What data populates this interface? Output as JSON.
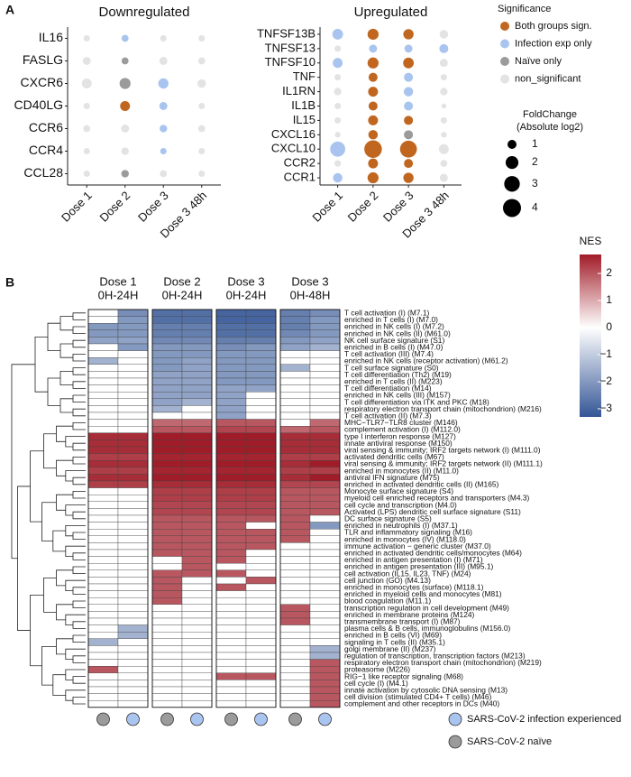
{
  "chart_data": [
    {
      "type": "dot",
      "panel": "A",
      "title": "Downregulated",
      "x": [
        "Dose 1",
        "Dose 2",
        "Dose 3",
        "Dose 3 48h"
      ],
      "genes": [
        "IL16",
        "FASLG",
        "CXCR6",
        "CD40LG",
        "CCR6",
        "CCR4",
        "CCL28"
      ],
      "sizes": [
        [
          0.5,
          0.6,
          0.5,
          0.5
        ],
        [
          0.8,
          0.6,
          0.8,
          0.6
        ],
        [
          1.2,
          1.5,
          1.3,
          0.9
        ],
        [
          0.5,
          1.2,
          0.8,
          0.5
        ],
        [
          0.6,
          0.8,
          0.7,
          0.6
        ],
        [
          0.5,
          0.7,
          0.5,
          0.5
        ],
        [
          0.5,
          0.7,
          0.6,
          0.5
        ]
      ],
      "significance": [
        [
          "non_significant",
          "Infection exp only",
          "non_significant",
          "non_significant"
        ],
        [
          "non_significant",
          "Naïve only",
          "non_significant",
          "non_significant"
        ],
        [
          "non_significant",
          "Naïve only",
          "Infection exp only",
          "non_significant"
        ],
        [
          "non_significant",
          "Both groups sign.",
          "Infection exp only",
          "non_significant"
        ],
        [
          "non_significant",
          "non_significant",
          "Infection exp only",
          "non_significant"
        ],
        [
          "non_significant",
          "non_significant",
          "Infection exp only",
          "non_significant"
        ],
        [
          "non_significant",
          "Naïve only",
          "non_significant",
          "non_significant"
        ]
      ]
    },
    {
      "type": "dot",
      "title": "Upregulated",
      "x": [
        "Dose 1",
        "Dose 2",
        "Dose 3",
        "Dose 3 48h"
      ],
      "genes": [
        "TNFSF13B",
        "TNFSF13",
        "TNFSF10",
        "TNF",
        "IL1RN",
        "IL1B",
        "IL15",
        "CXCL16",
        "CXCL10",
        "CCR2",
        "CCR1"
      ],
      "sizes": [
        [
          1.4,
          1.5,
          1.3,
          0.9
        ],
        [
          0.5,
          0.8,
          0.8,
          1.0
        ],
        [
          1.2,
          1.5,
          1.4,
          0.8
        ],
        [
          0.5,
          1.0,
          1.0,
          0.5
        ],
        [
          0.7,
          1.2,
          1.1,
          0.7
        ],
        [
          0.5,
          1.0,
          1.0,
          0.3
        ],
        [
          0.5,
          1.2,
          1.0,
          0.5
        ],
        [
          0.4,
          1.1,
          1.0,
          0.4
        ],
        [
          2.8,
          3.8,
          3.5,
          1.2
        ],
        [
          0.5,
          1.2,
          1.0,
          0.6
        ],
        [
          1.1,
          1.5,
          1.3,
          0.8
        ]
      ],
      "significance": [
        [
          "Infection exp only",
          "Both groups sign.",
          "Both groups sign.",
          "non_significant"
        ],
        [
          "non_significant",
          "Infection exp only",
          "Infection exp only",
          "Infection exp only"
        ],
        [
          "Infection exp only",
          "Both groups sign.",
          "Both groups sign.",
          "non_significant"
        ],
        [
          "non_significant",
          "Both groups sign.",
          "Infection exp only",
          "non_significant"
        ],
        [
          "non_significant",
          "Both groups sign.",
          "Infection exp only",
          "non_significant"
        ],
        [
          "non_significant",
          "Both groups sign.",
          "Infection exp only",
          "non_significant"
        ],
        [
          "non_significant",
          "Both groups sign.",
          "Both groups sign.",
          "non_significant"
        ],
        [
          "non_significant",
          "Both groups sign.",
          "Naïve only",
          "non_significant"
        ],
        [
          "Infection exp only",
          "Both groups sign.",
          "Both groups sign.",
          "non_significant"
        ],
        [
          "non_significant",
          "Both groups sign.",
          "Both groups sign.",
          "non_significant"
        ],
        [
          "Infection exp only",
          "Both groups sign.",
          "Both groups sign.",
          "non_significant"
        ]
      ],
      "significance_legend": {
        "title": "Significance",
        "entries": [
          {
            "name": "Both groups sign.",
            "color": "#c0661f"
          },
          {
            "name": "Infection exp only",
            "color": "#a9c4ee"
          },
          {
            "name": "Naïve only",
            "color": "#9b9b9b"
          },
          {
            "name": "non_significant",
            "color": "#e3e3e3"
          }
        ]
      },
      "size_legend": {
        "title": [
          "FoldChange",
          "(Absolute log2)"
        ],
        "values": [
          1,
          2,
          3,
          4
        ]
      }
    },
    {
      "type": "heatmap",
      "panel": "B",
      "headers": [
        [
          "Dose 1",
          "0H-24H"
        ],
        [
          "Dose 2",
          "0H-24H"
        ],
        [
          "Dose 3",
          "0H-24H"
        ],
        [
          "Dose 3",
          "0H-48H"
        ]
      ],
      "column_cohorts": [
        "SARS-CoV-2 naïve",
        "SARS-CoV-2 infection experienced",
        "SARS-CoV-2 naïve",
        "SARS-CoV-2 infection experienced",
        "SARS-CoV-2 naïve",
        "SARS-CoV-2 infection experienced",
        "SARS-CoV-2 naïve",
        "SARS-CoV-2 infection experienced"
      ],
      "cohorts": [
        {
          "name": "SARS-CoV-2 infection experienced",
          "color": "#a9c4ee"
        },
        {
          "name": "SARS-CoV-2 naïve",
          "color": "#9b9b9b"
        }
      ],
      "colorbar": {
        "title": "NES",
        "clim": [
          -3.3,
          2.7
        ],
        "ticks": [
          2,
          1,
          0,
          {
            "value": -1,
            "label": "−1"
          },
          {
            "value": -2,
            "label": "−2"
          },
          {
            "value": -3,
            "label": "−3"
          }
        ]
      },
      "rows": [
        "T cell activation (I) (M7.1)",
        "enriched in T cells (I) (M7.0)",
        "enriched in NK cells (I) (M7.2)",
        "enriched in NK cells (II) (M61.0)",
        "NK cell surface signature (S1)",
        "enriched in B cells (I) (M47.0)",
        "T cell activation (III) (M7.4)",
        "enriched in NK cells (receptor activation) (M61.2)",
        "T cell surface signature (S0)",
        "T cell differentiation (Th2) (M19)",
        "enriched in T cells (II) (M223)",
        "T cell differentiation (M14)",
        "enriched in NK cells (III) (M157)",
        "T cell differentiation via ITK and PKC (M18)",
        "respiratory electron transport chain (mitochondrion) (M216)",
        "T cell activation (II) (M7.3)",
        "MHC−TLR7−TLR8 cluster (M146)",
        "complement activation (I) (M112.0)",
        "type I interferon response (M127)",
        "innate antiviral response (M150)",
        "viral sensing & immunity; IRF2 targets network (I) (M111.0)",
        "activated dendritic cells (M67)",
        "viral sensing & immunity; IRF2 targets network (II) (M111.1)",
        "enriched in monocytes (II) (M11.0)",
        "antiviral IFN signature (M75)",
        "enriched in activated dendritic cells (II) (M165)",
        "Monocyte surface signature (S4)",
        "myeloid cell enriched receptors and transporters (M4.3)",
        "cell cycle and transcription (M4.0)",
        "Activated (LPS) dendritic cell surface signature (S11)",
        "DC surface signature (S5)",
        "enriched in neutrophils (I) (M37.1)",
        "TLR and inflammatory signaling (M16)",
        "enriched in monocytes (IV) (M118.0)",
        "immune activation − generic cluster (M37.0)",
        "enriched in activated dendritic cells/monocytes (M64)",
        "enriched in antigen presentation (I) (M71)",
        "enriched in antigen presentation (III) (M95.1)",
        "cell activation (IL15, IL23, TNF) (M24)",
        "cell junction (GO) (M4.13)",
        "enriched in monocytes (surface) (M118.1)",
        "enriched in myeloid cells and monocytes (M81)",
        "blood coagulation (M11.1)",
        "transcription regulation in cell development (M49)",
        "enriched in membrane proteins (M124)",
        "transmembrane transport (I) (M87)",
        "plasma cells & B cells, immunoglobulins (M156.0)",
        "enriched in B cells (VI) (M69)",
        "signaling in T cells (II) (M35.1)",
        "golgi membrane (II) (M237)",
        "regulation of transcription, transcription factors (M213)",
        "respiratory electron transport chain (mitochondrion) (M219)",
        "proteasome (M226)",
        "RIG−1 like receptor signaling (M68)",
        "cell cycle (I) (M4.1)",
        "innate activation by cytosolic DNA sensing (M13)",
        "cell division (stimulated CD4+ T cells) (M46)",
        "complement and other receptors in DCs (M40)"
      ],
      "values": [
        [
          0,
          -2.2,
          -2.8,
          -2.8,
          -3,
          -3,
          -2.5,
          -2.2
        ],
        [
          0,
          -2,
          -2.8,
          -2.8,
          -3,
          -3,
          -2.5,
          -2
        ],
        [
          -2,
          -2,
          -2.5,
          -2.5,
          -2.8,
          -2.8,
          -2.5,
          -2
        ],
        [
          -2,
          -2,
          -2.5,
          -2.5,
          -2.8,
          -2.8,
          -2.3,
          -2
        ],
        [
          -1.8,
          -1.8,
          -2.3,
          -2.3,
          -2.5,
          -2.5,
          -2,
          -1.8
        ],
        [
          0,
          -2,
          -2,
          -2,
          -2.2,
          -2,
          -1.8,
          -1.5
        ],
        [
          0,
          0,
          -2,
          -2,
          -2,
          -2,
          0,
          0
        ],
        [
          -1.5,
          0,
          -2,
          -1.8,
          -2,
          -2,
          0,
          0
        ],
        [
          0,
          0,
          -2,
          -1.8,
          -2,
          -2,
          -1.5,
          0
        ],
        [
          0,
          0,
          -1.8,
          -1.8,
          -2,
          -2,
          0,
          0
        ],
        [
          0,
          0,
          -1.8,
          -1.8,
          -2,
          -2,
          0,
          0
        ],
        [
          0,
          0,
          -1.8,
          -1.8,
          -1.8,
          -1.8,
          0,
          0
        ],
        [
          0,
          0,
          -1.8,
          -1.8,
          -1.8,
          0,
          0,
          0
        ],
        [
          0,
          0,
          -1.8,
          -1.5,
          -1.8,
          0,
          0,
          0
        ],
        [
          0,
          0,
          -1.5,
          0,
          -1.8,
          0,
          0,
          0
        ],
        [
          0,
          0,
          0,
          0,
          -1.8,
          0,
          0,
          0
        ],
        [
          0,
          0,
          1.8,
          1.8,
          2,
          2,
          0,
          1.8
        ],
        [
          0,
          0,
          2,
          2,
          2.2,
          2.2,
          1.8,
          2
        ],
        [
          2.5,
          2.5,
          2.8,
          2.8,
          2.8,
          2.8,
          2.5,
          2.5
        ],
        [
          2.5,
          2.5,
          2.8,
          2.8,
          2.8,
          2.8,
          2.5,
          2.5
        ],
        [
          2.5,
          2.5,
          2.8,
          2.8,
          2.8,
          2.8,
          2.5,
          2.5
        ],
        [
          2.3,
          2.3,
          2.6,
          2.6,
          2.6,
          2.6,
          2.3,
          2.3
        ],
        [
          2.5,
          2.5,
          2.8,
          2.8,
          2.8,
          2.8,
          2.5,
          2.8
        ],
        [
          2.3,
          2.3,
          2.6,
          2.6,
          2.6,
          2.6,
          2.3,
          2.3
        ],
        [
          2.5,
          2.5,
          2.8,
          2.8,
          2.8,
          3,
          2.5,
          3
        ],
        [
          2.3,
          2.3,
          2.5,
          2.5,
          2.5,
          2.5,
          2.2,
          2.2
        ],
        [
          0,
          0,
          2.3,
          2.3,
          2.3,
          2.3,
          2,
          2
        ],
        [
          0,
          0,
          2.3,
          2.3,
          2.3,
          2.3,
          2,
          2
        ],
        [
          0,
          0,
          2.2,
          2.2,
          2.2,
          2.2,
          2,
          2
        ],
        [
          0,
          0,
          2.2,
          2.2,
          2.2,
          2.2,
          2,
          2
        ],
        [
          0,
          0,
          2,
          2,
          2,
          2,
          2,
          0
        ],
        [
          0,
          0,
          2,
          2,
          2,
          0,
          2,
          -2
        ],
        [
          0,
          0,
          2,
          2,
          2,
          2,
          2,
          0
        ],
        [
          0,
          0,
          2,
          2,
          2,
          2,
          2,
          0
        ],
        [
          0,
          0,
          2,
          2,
          2,
          2,
          0,
          0
        ],
        [
          0,
          0,
          2,
          2,
          2,
          0,
          0,
          0
        ],
        [
          0,
          0,
          0,
          2,
          2,
          0,
          0,
          0
        ],
        [
          0,
          0,
          0,
          2,
          0,
          0,
          0,
          0
        ],
        [
          0,
          0,
          2,
          2,
          2,
          0,
          0,
          0
        ],
        [
          0,
          0,
          2,
          0,
          0,
          2,
          0,
          0
        ],
        [
          0,
          0,
          2,
          0,
          2,
          0,
          0,
          0
        ],
        [
          0,
          0,
          2,
          0,
          0,
          0,
          0,
          0
        ],
        [
          0,
          0,
          2,
          0,
          0,
          0,
          0,
          0
        ],
        [
          0,
          0,
          0,
          0,
          0,
          0,
          2,
          0
        ],
        [
          0,
          0,
          0,
          0,
          0,
          0,
          2,
          0
        ],
        [
          0,
          0,
          0,
          0,
          0,
          0,
          2,
          0
        ],
        [
          0,
          -1.5,
          0,
          0,
          0,
          0,
          0,
          0
        ],
        [
          0,
          -1.5,
          0,
          0,
          0,
          0,
          0,
          0
        ],
        [
          -1.5,
          0,
          0,
          0,
          0,
          0,
          0,
          0
        ],
        [
          0,
          0,
          0,
          0,
          0,
          0,
          0,
          -1.5
        ],
        [
          0,
          0,
          0,
          0,
          0,
          0,
          0,
          -1.5
        ],
        [
          0,
          0,
          0,
          0,
          0,
          0,
          0,
          2
        ],
        [
          2,
          0,
          0,
          0,
          0,
          0,
          0,
          2
        ],
        [
          0,
          0,
          0,
          0,
          2,
          2,
          0,
          2
        ],
        [
          0,
          0,
          0,
          0,
          0,
          0,
          0,
          2
        ],
        [
          0,
          0,
          0,
          0,
          0,
          0,
          0,
          2
        ],
        [
          0,
          0,
          0,
          0,
          0,
          0,
          0,
          2
        ],
        [
          0,
          0,
          0,
          0,
          0,
          0,
          0,
          2
        ]
      ]
    }
  ]
}
